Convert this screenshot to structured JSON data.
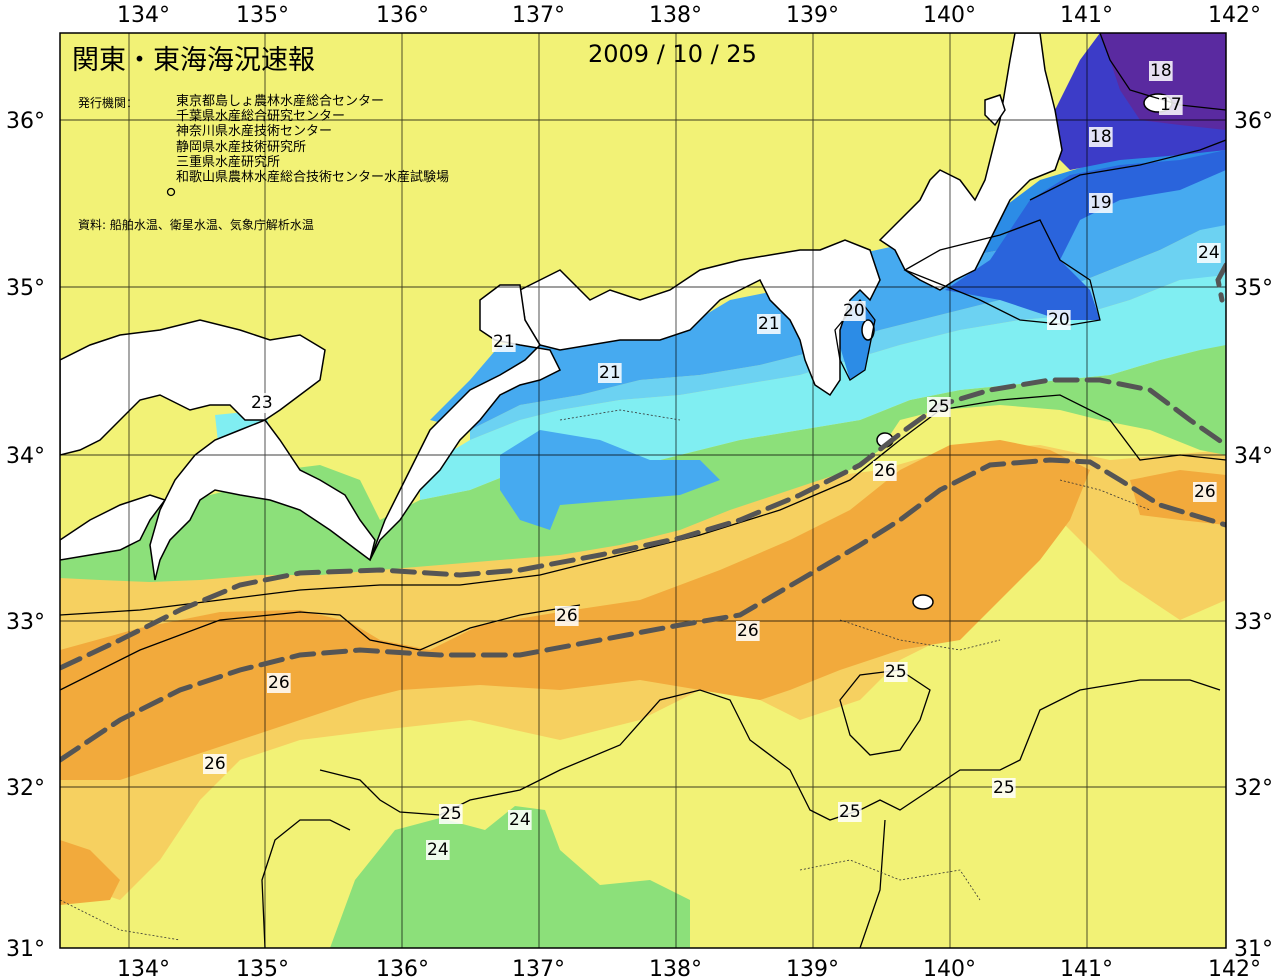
{
  "header": {
    "title": "関東・東海海況速報",
    "date": "2009 / 10 / 25",
    "issuer_label": "発行機関：",
    "issuers": [
      "東京都島しょ農林水産総合センター",
      "千葉県水産総合研究センター",
      "神奈川県水産技術センター",
      "静岡県水産技術研究所",
      "三重県水産研究所",
      "和歌山県農林水産総合技術センター水産試験場"
    ],
    "source": "資料: 船舶水温、衛星水温、気象庁解析水温"
  },
  "axes": {
    "lon_ticks": [
      "134°",
      "135°",
      "136°",
      "137°",
      "138°",
      "139°",
      "140°",
      "141°",
      "142°"
    ],
    "lat_ticks": [
      "36°",
      "35°",
      "34°",
      "33°",
      "32°",
      "31°"
    ]
  },
  "contour_labels": [
    "18",
    "17",
    "18",
    "19",
    "24",
    "20",
    "20",
    "21",
    "21",
    "21",
    "23",
    "25",
    "26",
    "26",
    "26",
    "26",
    "26",
    "25",
    "25",
    "25",
    "25",
    "24",
    "24",
    "26"
  ],
  "colors": {
    "t17": "#5a2aa0",
    "t18": "#3c3cc8",
    "t19": "#2a64dc",
    "t20": "#2c8ce6",
    "t21": "#46aaf0",
    "t22": "#6cd2f2",
    "t23": "#80eef2",
    "t24": "#8ce07a",
    "t25": "#f2f276",
    "t25_5": "#f6d060",
    "t26": "#f2aa3c",
    "land": "#ffffff",
    "current_line": "#555555"
  }
}
